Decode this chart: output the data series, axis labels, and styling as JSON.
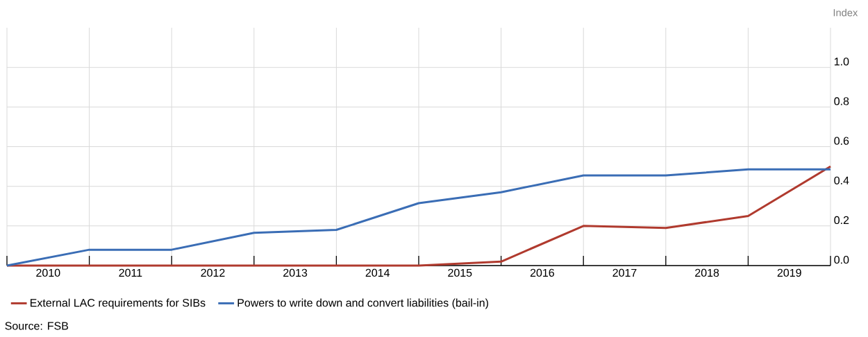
{
  "chart_data": {
    "type": "line",
    "ylabel": "Index",
    "x": [
      2010,
      2011,
      2012,
      2013,
      2014,
      2015,
      2016,
      2017,
      2018,
      2019,
      2020
    ],
    "xlim": [
      2010,
      2020
    ],
    "xticks": [
      {
        "value": 2010.5,
        "label": "2010"
      },
      {
        "value": 2011.5,
        "label": "2011"
      },
      {
        "value": 2012.5,
        "label": "2012"
      },
      {
        "value": 2013.5,
        "label": "2013"
      },
      {
        "value": 2014.5,
        "label": "2014"
      },
      {
        "value": 2015.5,
        "label": "2015"
      },
      {
        "value": 2016.5,
        "label": "2016"
      },
      {
        "value": 2017.5,
        "label": "2017"
      },
      {
        "value": 2018.5,
        "label": "2018"
      },
      {
        "value": 2019.5,
        "label": "2019"
      }
    ],
    "ylim": [
      0,
      1.2
    ],
    "yticks": [
      {
        "value": 0,
        "label": "0.0"
      },
      {
        "value": 0.2,
        "label": "0.2"
      },
      {
        "value": 0.4,
        "label": "0.4"
      },
      {
        "value": 0.6,
        "label": "0.6"
      },
      {
        "value": 0.8,
        "label": "0.8"
      },
      {
        "value": 1.0,
        "label": "1.0"
      }
    ],
    "grid": true,
    "legend": "bottom left",
    "marker": "none",
    "line_style": "solid",
    "series": [
      {
        "name": "External LAC requirements for SIBs",
        "color": "#b03a2e",
        "values": [
          0,
          0,
          0,
          0,
          0,
          0,
          0.02,
          0.2,
          0.19,
          0.25,
          0.5
        ]
      },
      {
        "name": "Powers to write down and convert liabilities (bail-in)",
        "color": "#3a6db5",
        "values": [
          0,
          0.08,
          0.08,
          0.165,
          0.18,
          0.315,
          0.37,
          0.455,
          0.455,
          0.485,
          0.485
        ]
      }
    ],
    "annotations": [
      "Source: FSB"
    ]
  }
}
